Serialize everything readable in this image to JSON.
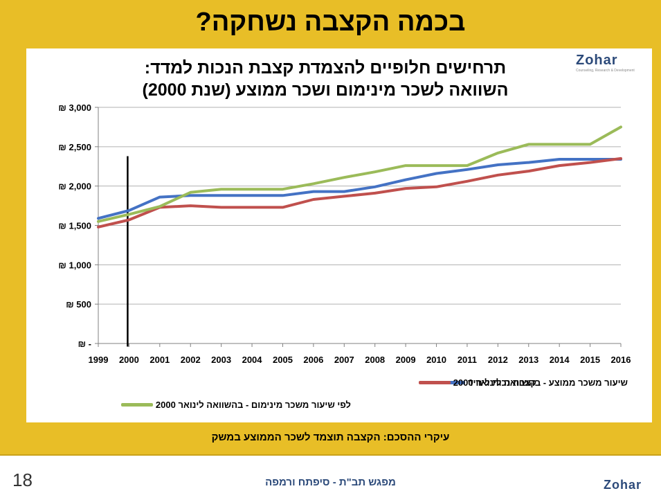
{
  "slide": {
    "title": "בכמה הקצבה נשחקה?",
    "bottom_note": "עיקרי ההסכם: הקצבה תוצמד לשכר הממוצע במשק",
    "page_number": "18",
    "footer_text": "מפגש תב\"ת - סיפתח ורמפה"
  },
  "logo": {
    "name": "Zohar",
    "tagline": "Counseling, Research & Development"
  },
  "colors": {
    "frame": "#E8BE27",
    "blue": "#4472C4",
    "red": "#C0504D",
    "green": "#9BBB59"
  },
  "chart_data": {
    "type": "line",
    "title_lines": [
      "תרחישים חלופיים להצמדת קצבת הנכות למדד:",
      "השוואה לשכר מינימום ושכר ממוצע (שנת 2000)"
    ],
    "xlabel": "",
    "ylabel": "",
    "categories": [
      "1999",
      "2000",
      "2001",
      "2002",
      "2003",
      "2004",
      "2005",
      "2006",
      "2007",
      "2008",
      "2009",
      "2010",
      "2011",
      "2012",
      "2013",
      "2014",
      "2015",
      "2016"
    ],
    "y_ticks": [
      0,
      500,
      1000,
      1500,
      2000,
      2500,
      3000
    ],
    "y_tick_labels": [
      "₪ -",
      "₪ 500",
      "₪ 1,000",
      "₪ 1,500",
      "₪ 2,000",
      "₪ 2,500",
      "₪ 3,000"
    ],
    "ylim": [
      0,
      3000
    ],
    "grid": "horizontal",
    "legend_position": "bottom",
    "vertical_marker_year": "2000",
    "series": [
      {
        "name": "קצבת נכות ליחיד",
        "color": "#4472C4",
        "values": [
          1590,
          1690,
          1860,
          1880,
          1880,
          1880,
          1880,
          1930,
          1930,
          1990,
          2080,
          2160,
          2210,
          2270,
          2300,
          2340,
          2340,
          2340
        ]
      },
      {
        "name": "שיעור משכר ממוצע - בהשוואה לינואר 2000",
        "color": "#C0504D",
        "values": [
          1480,
          1570,
          1730,
          1750,
          1730,
          1730,
          1730,
          1830,
          1870,
          1910,
          1970,
          1990,
          2060,
          2140,
          2190,
          2260,
          2300,
          2350
        ]
      },
      {
        "name": "לפי שיעור משכר מינימום - בהשוואה לינואר 2000",
        "color": "#9BBB59",
        "values": [
          1550,
          1640,
          1740,
          1920,
          1960,
          1960,
          1960,
          2030,
          2110,
          2180,
          2260,
          2260,
          2260,
          2420,
          2530,
          2530,
          2530,
          2750
        ]
      }
    ]
  }
}
